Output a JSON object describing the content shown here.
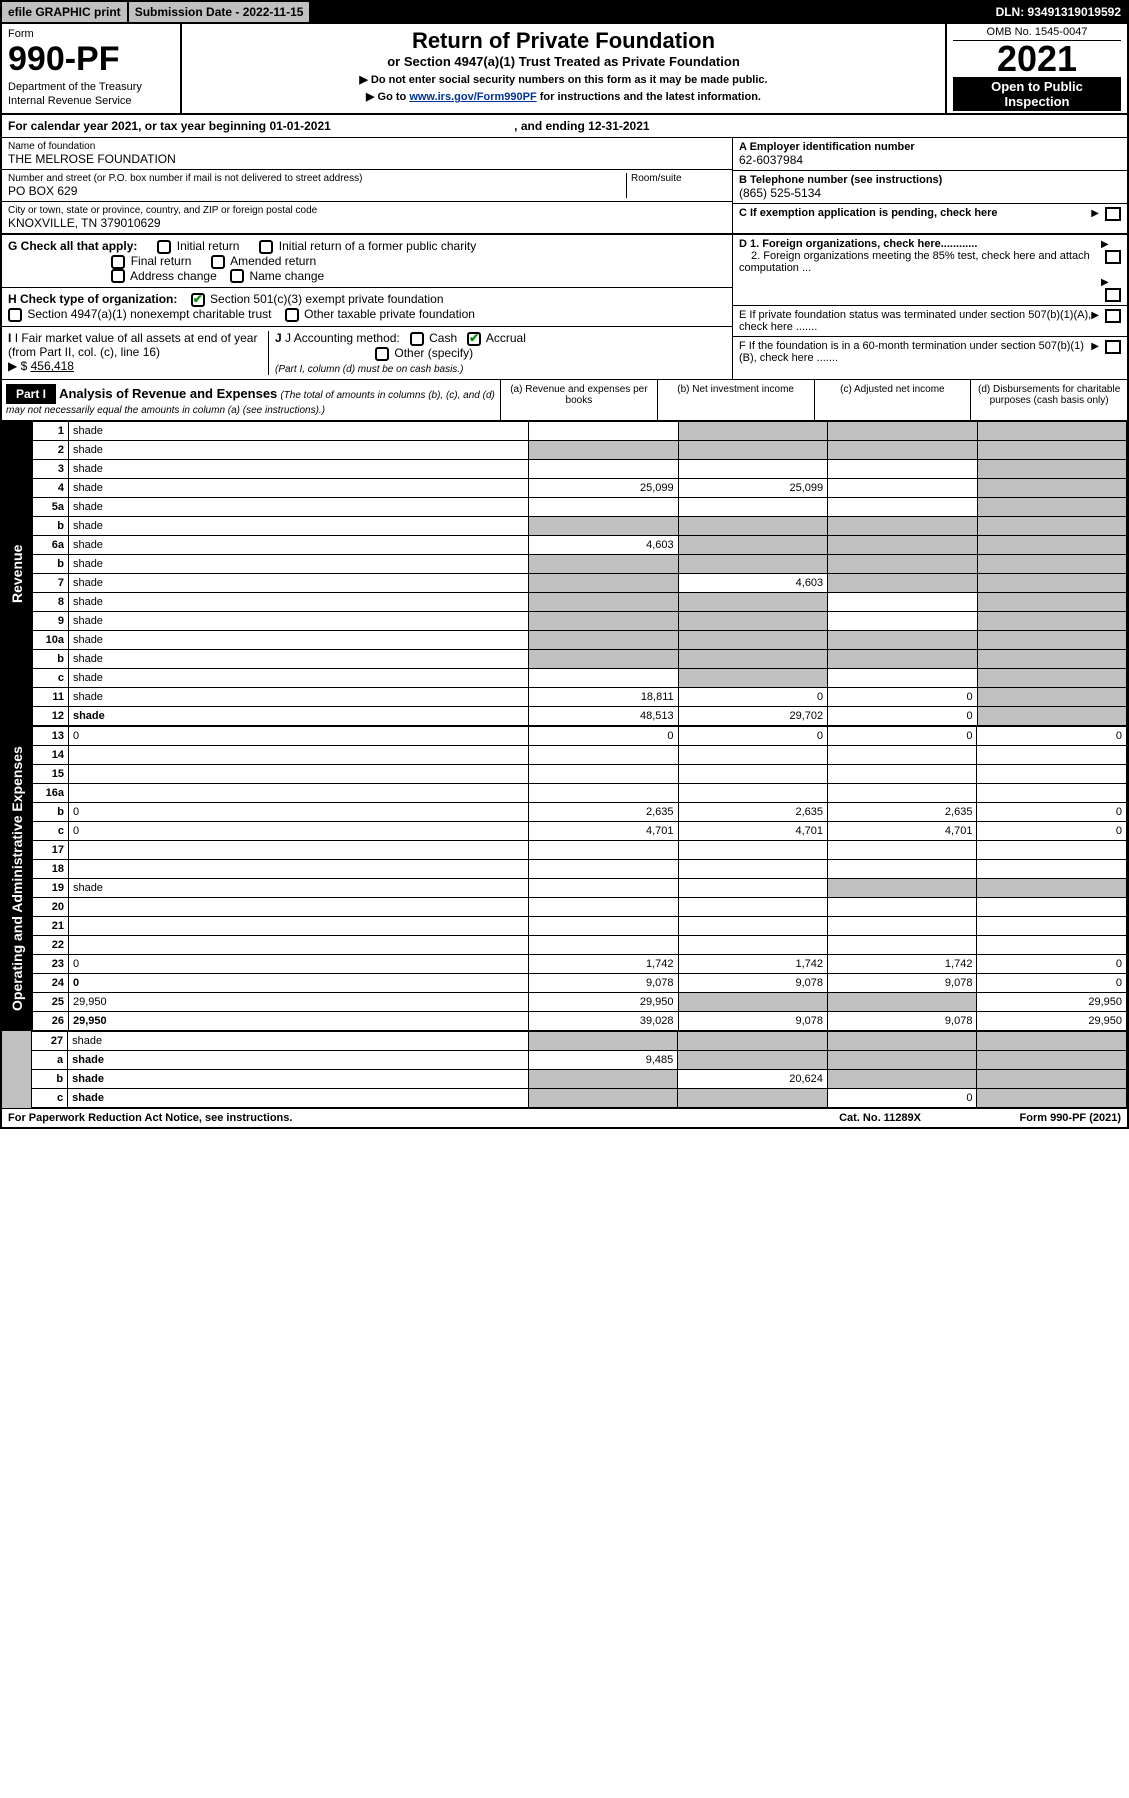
{
  "topbar": {
    "efile": "efile GRAPHIC print",
    "submission": "Submission Date - 2022-11-15",
    "dln": "DLN: 93491319019592"
  },
  "header": {
    "form_label": "Form",
    "form_no": "990-PF",
    "dept1": "Department of the Treasury",
    "dept2": "Internal Revenue Service",
    "title": "Return of Private Foundation",
    "subtitle": "or Section 4947(a)(1) Trust Treated as Private Foundation",
    "note1": "▶ Do not enter social security numbers on this form as it may be made public.",
    "note2_pre": "▶ Go to ",
    "note2_link": "www.irs.gov/Form990PF",
    "note2_post": " for instructions and the latest information.",
    "omb": "OMB No. 1545-0047",
    "year": "2021",
    "inspect1": "Open to Public",
    "inspect2": "Inspection"
  },
  "calyear": {
    "text": "For calendar year 2021, or tax year beginning 01-01-2021",
    "ending": ", and ending 12-31-2021"
  },
  "foundation": {
    "name_label": "Name of foundation",
    "name": "THE MELROSE FOUNDATION",
    "addr_label": "Number and street (or P.O. box number if mail is not delivered to street address)",
    "addr": "PO BOX 629",
    "room_label": "Room/suite",
    "city_label": "City or town, state or province, country, and ZIP or foreign postal code",
    "city": "KNOXVILLE, TN  379010629",
    "a_label": "A Employer identification number",
    "a_val": "62-6037984",
    "b_label": "B Telephone number (see instructions)",
    "b_val": "(865) 525-5134",
    "c_label": "C If exemption application is pending, check here"
  },
  "checks": {
    "g_label": "G Check all that apply:",
    "g1": "Initial return",
    "g2": "Initial return of a former public charity",
    "g3": "Final return",
    "g4": "Amended return",
    "g5": "Address change",
    "g6": "Name change",
    "h_label": "H Check type of organization:",
    "h1": "Section 501(c)(3) exempt private foundation",
    "h2": "Section 4947(a)(1) nonexempt charitable trust",
    "h3": "Other taxable private foundation",
    "i_label": "I Fair market value of all assets at end of year (from Part II, col. (c), line 16)",
    "i_val": "456,418",
    "j_label": "J Accounting method:",
    "j1": "Cash",
    "j2": "Accrual",
    "j3": "Other (specify)",
    "j_note": "(Part I, column (d) must be on cash basis.)",
    "d1": "D 1. Foreign organizations, check here............",
    "d2": "2. Foreign organizations meeting the 85% test, check here and attach computation ...",
    "e": "E  If private foundation status was terminated under section 507(b)(1)(A), check here .......",
    "f": "F  If the foundation is in a 60-month termination under section 507(b)(1)(B), check here .......",
    "arrow_dollar": "▶ $"
  },
  "part1": {
    "tag": "Part I",
    "title": "Analysis of Revenue and Expenses",
    "title_note": "(The total of amounts in columns (b), (c), and (d) may not necessarily equal the amounts in column (a) (see instructions).)",
    "col_a": "(a)  Revenue and expenses per books",
    "col_b": "(b)  Net investment income",
    "col_c": "(c)  Adjusted net income",
    "col_d": "(d)  Disbursements for charitable purposes (cash basis only)",
    "side_rev": "Revenue",
    "side_exp": "Operating and Administrative Expenses"
  },
  "lines": [
    {
      "n": "1",
      "d": "shade",
      "a": "",
      "b": "shade",
      "c": "shade"
    },
    {
      "n": "2",
      "d": "shade",
      "a": "shade",
      "b": "shade",
      "c": "shade",
      "bold": false
    },
    {
      "n": "3",
      "d": "shade",
      "a": "",
      "b": "",
      "c": ""
    },
    {
      "n": "4",
      "d": "shade",
      "a": "25,099",
      "b": "25,099",
      "c": ""
    },
    {
      "n": "5a",
      "d": "shade",
      "a": "",
      "b": "",
      "c": ""
    },
    {
      "n": "b",
      "d": "shade",
      "a": "shade",
      "b": "shade",
      "c": "shade",
      "inline": true
    },
    {
      "n": "6a",
      "d": "shade",
      "a": "4,603",
      "b": "shade",
      "c": "shade"
    },
    {
      "n": "b",
      "d": "shade",
      "a": "shade",
      "b": "shade",
      "c": "shade",
      "inline": true
    },
    {
      "n": "7",
      "d": "shade",
      "a": "shade",
      "b": "4,603",
      "c": "shade"
    },
    {
      "n": "8",
      "d": "shade",
      "a": "shade",
      "b": "shade",
      "c": ""
    },
    {
      "n": "9",
      "d": "shade",
      "a": "shade",
      "b": "shade",
      "c": ""
    },
    {
      "n": "10a",
      "d": "shade",
      "a": "shade",
      "b": "shade",
      "c": "shade",
      "inline": true
    },
    {
      "n": "b",
      "d": "shade",
      "a": "shade",
      "b": "shade",
      "c": "shade",
      "inline": true
    },
    {
      "n": "c",
      "d": "shade",
      "a": "",
      "b": "shade",
      "c": ""
    },
    {
      "n": "11",
      "d": "shade",
      "a": "18,811",
      "b": "0",
      "c": "0"
    },
    {
      "n": "12",
      "d": "shade",
      "a": "48,513",
      "b": "29,702",
      "c": "0",
      "bold": true
    }
  ],
  "exp_lines": [
    {
      "n": "13",
      "d": "0",
      "a": "0",
      "b": "0",
      "c": "0"
    },
    {
      "n": "14",
      "d": "",
      "a": "",
      "b": "",
      "c": ""
    },
    {
      "n": "15",
      "d": "",
      "a": "",
      "b": "",
      "c": ""
    },
    {
      "n": "16a",
      "d": "",
      "a": "",
      "b": "",
      "c": ""
    },
    {
      "n": "b",
      "d": "0",
      "a": "2,635",
      "b": "2,635",
      "c": "2,635"
    },
    {
      "n": "c",
      "d": "0",
      "a": "4,701",
      "b": "4,701",
      "c": "4,701"
    },
    {
      "n": "17",
      "d": "",
      "a": "",
      "b": "",
      "c": ""
    },
    {
      "n": "18",
      "d": "",
      "a": "",
      "b": "",
      "c": ""
    },
    {
      "n": "19",
      "d": "shade",
      "a": "",
      "b": "",
      "c": "shade"
    },
    {
      "n": "20",
      "d": "",
      "a": "",
      "b": "",
      "c": ""
    },
    {
      "n": "21",
      "d": "",
      "a": "",
      "b": "",
      "c": ""
    },
    {
      "n": "22",
      "d": "",
      "a": "",
      "b": "",
      "c": ""
    },
    {
      "n": "23",
      "d": "0",
      "a": "1,742",
      "b": "1,742",
      "c": "1,742"
    },
    {
      "n": "24",
      "d": "0",
      "a": "9,078",
      "b": "9,078",
      "c": "9,078",
      "bold": true
    },
    {
      "n": "25",
      "d": "29,950",
      "a": "29,950",
      "b": "shade",
      "c": "shade"
    },
    {
      "n": "26",
      "d": "29,950",
      "a": "39,028",
      "b": "9,078",
      "c": "9,078",
      "bold": true
    }
  ],
  "bottom_lines": [
    {
      "n": "27",
      "d": "shade",
      "a": "shade",
      "b": "shade",
      "c": "shade"
    },
    {
      "n": "a",
      "d": "shade",
      "a": "9,485",
      "b": "shade",
      "c": "shade",
      "bold": true
    },
    {
      "n": "b",
      "d": "shade",
      "a": "shade",
      "b": "20,624",
      "c": "shade",
      "bold": true
    },
    {
      "n": "c",
      "d": "shade",
      "a": "shade",
      "b": "shade",
      "c": "0",
      "bold": true
    }
  ],
  "footer": {
    "left": "For Paperwork Reduction Act Notice, see instructions.",
    "mid": "Cat. No. 11289X",
    "right": "Form 990-PF (2021)"
  },
  "colors": {
    "shade": "#c0c0c0",
    "link": "#003399",
    "check": "#0a8a0a"
  }
}
